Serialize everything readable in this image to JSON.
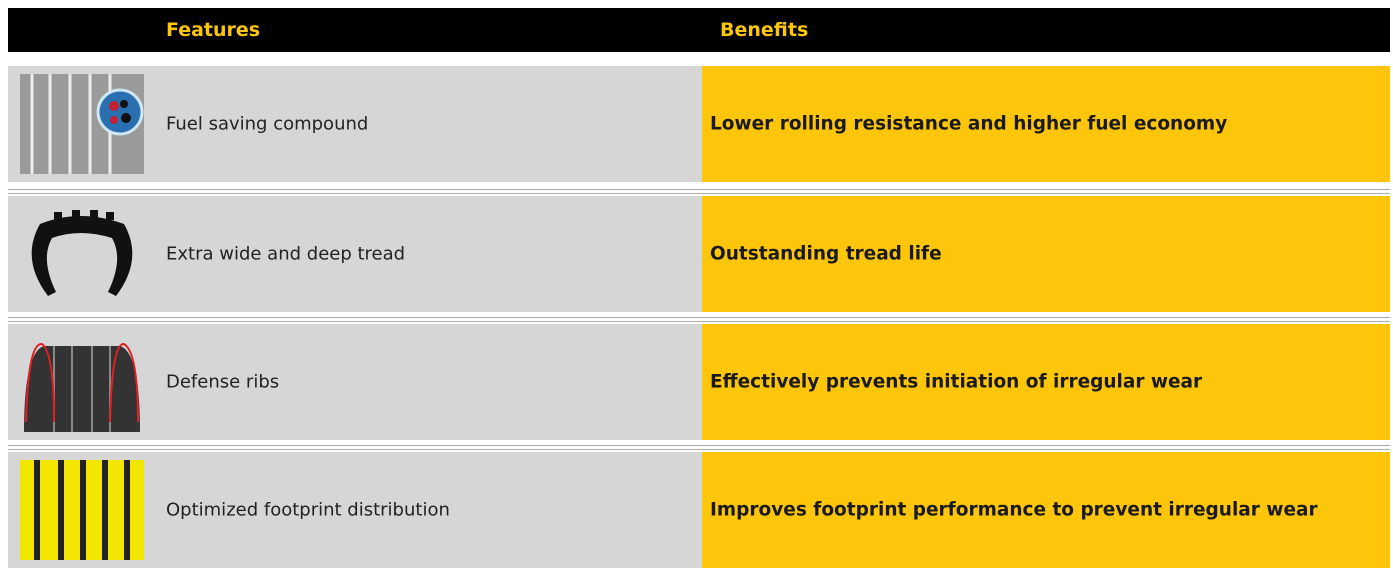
{
  "header": {
    "features": "Features",
    "benefits": "Benefits"
  },
  "rows": [
    {
      "feature": "Fuel saving compound",
      "benefit": "Lower rolling resistance and higher fuel economy"
    },
    {
      "feature": "Extra wide and deep tread",
      "benefit": "Outstanding tread life"
    },
    {
      "feature": "Defense ribs",
      "benefit": "Effectively prevents initiation of irregular wear"
    },
    {
      "feature": "Optimized footprint distribution",
      "benefit": "Improves footprint performance to prevent irregular wear"
    }
  ]
}
